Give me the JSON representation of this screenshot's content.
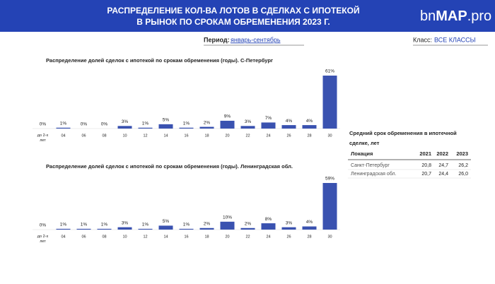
{
  "header": {
    "title_lines": [
      "РАСПРЕДЕЛЕНИЕ КОЛ-ВА ЛОТОВ В СДЕЛКАХ С ИПОТЕКОЙ",
      "В РЫНОК ПО СРОКАМ ОБРЕМЕНЕНИЯ 2023 Г."
    ],
    "logo": [
      "bn",
      "MAP",
      ".pro"
    ]
  },
  "filters": {
    "period_label": "Период:",
    "period_value": "январь-сентябрь",
    "class_label": "Класс:",
    "class_value": "ВСЕ КЛАССЫ"
  },
  "chart_data": [
    {
      "type": "bar",
      "title": "Распределение долей сделок с ипотекой по срокам обременения (годы). С-Петербург",
      "categories": [
        "до 2-х лет",
        "04",
        "06",
        "08",
        "10",
        "12",
        "14",
        "16",
        "18",
        "20",
        "22",
        "24",
        "26",
        "28",
        "30"
      ],
      "values": [
        0,
        1,
        0,
        0,
        3,
        1,
        5,
        1,
        2,
        9,
        3,
        7,
        4,
        4,
        61
      ],
      "value_labels": [
        "0%",
        "1%",
        "0%",
        "0%",
        "3%",
        "1%",
        "5%",
        "1%",
        "2%",
        "9%",
        "3%",
        "7%",
        "4%",
        "4%",
        "61%"
      ],
      "color": "#3a52b0"
    },
    {
      "type": "bar",
      "title": "Распределение долей сделок с ипотекой по срокам обременения (годы). Ленинградская обл.",
      "categories": [
        "до 2-х лет",
        "04",
        "06",
        "08",
        "10",
        "12",
        "14",
        "16",
        "18",
        "20",
        "22",
        "24",
        "26",
        "28",
        "30"
      ],
      "values": [
        0,
        1,
        1,
        1,
        3,
        1,
        5,
        1,
        2,
        10,
        2,
        8,
        3,
        4,
        59
      ],
      "value_labels": [
        "0%",
        "1%",
        "1%",
        "1%",
        "3%",
        "1%",
        "5%",
        "1%",
        "2%",
        "10%",
        "2%",
        "8%",
        "3%",
        "4%",
        "59%"
      ],
      "color": "#3a52b0"
    }
  ],
  "table": {
    "title": "Средний срок обременения в ипотечной сделке, лет",
    "header": [
      "Локация",
      "2021",
      "2022",
      "2023"
    ],
    "rows": [
      [
        "Санкт-Петербург",
        "20,8",
        "24,7",
        "26,2"
      ],
      [
        "Ленинградская обл.",
        "20,7",
        "24,4",
        "26,0"
      ]
    ]
  }
}
